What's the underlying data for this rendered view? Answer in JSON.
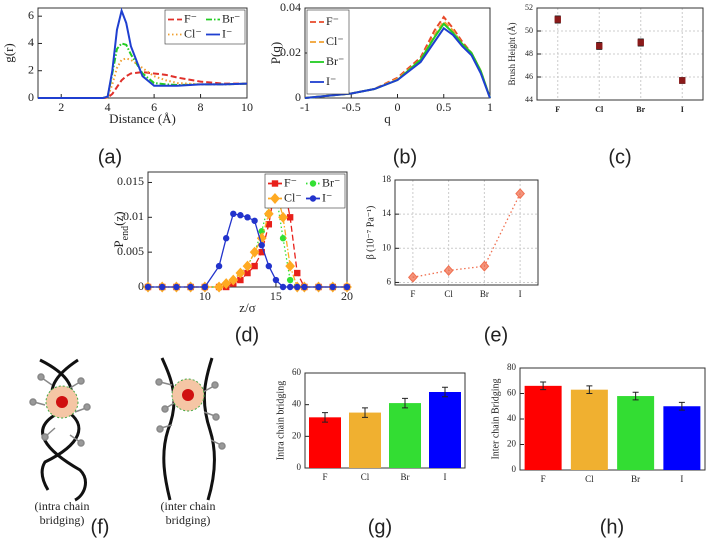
{
  "chart_data": [
    {
      "type": "line",
      "panel_label": "(a)",
      "x_label": "Distance (Å)",
      "y_label": "g(r)",
      "x": [
        1,
        2,
        3,
        3.8,
        4,
        4.2,
        4.4,
        4.6,
        4.8,
        5,
        5.5,
        6,
        6.5,
        7,
        8,
        9,
        10
      ],
      "xlim": [
        1,
        10
      ],
      "xticks": [
        2,
        4,
        6,
        8,
        10
      ],
      "ylim": [
        0,
        6.6
      ],
      "yticks": [
        0,
        2,
        4,
        6
      ],
      "grid": false,
      "legend": "top-right",
      "legend_columns": 2,
      "series": [
        {
          "name": "F⁻",
          "color": "#e0302a",
          "dash": "dashed",
          "values": [
            0,
            0,
            0,
            0,
            0.02,
            0.3,
            0.8,
            1.3,
            1.6,
            1.8,
            1.9,
            1.8,
            1.7,
            1.5,
            1.2,
            1.05,
            1.05
          ]
        },
        {
          "name": "Br⁻",
          "color": "#22cc22",
          "dash": "dashdot",
          "values": [
            0,
            0,
            0,
            0,
            0.1,
            1.8,
            3.6,
            4.0,
            3.9,
            3.2,
            1.8,
            1.1,
            1.0,
            0.95,
            1.0,
            1.0,
            1.05
          ]
        },
        {
          "name": "Cl⁻",
          "color": "#f0a030",
          "dash": "dotted",
          "values": [
            0,
            0,
            0,
            0,
            0.05,
            1.0,
            2.2,
            2.8,
            2.9,
            2.8,
            2.2,
            1.6,
            1.3,
            1.1,
            1.0,
            1.0,
            1.05
          ]
        },
        {
          "name": "I⁻",
          "color": "#1f3fd0",
          "dash": "solid",
          "values": [
            0,
            0,
            0,
            0,
            0.1,
            2.0,
            5.0,
            6.4,
            5.5,
            3.8,
            1.6,
            0.9,
            0.9,
            0.9,
            1.0,
            1.0,
            1.05
          ]
        }
      ]
    },
    {
      "type": "line",
      "panel_label": "(b)",
      "x_label": "q",
      "y_label": "P(q)",
      "x": [
        -1,
        -0.75,
        -0.5,
        -0.25,
        0,
        0.25,
        0.4,
        0.5,
        0.6,
        0.7,
        0.8,
        0.9,
        1
      ],
      "xlim": [
        -1,
        1
      ],
      "xticks": [
        -1,
        -0.5,
        0,
        0.5,
        1
      ],
      "ylim": [
        0,
        0.04
      ],
      "yticks": [
        0,
        0.02,
        0.04
      ],
      "grid": false,
      "legend": "top-left",
      "legend_columns": 1,
      "series": [
        {
          "name": "F⁻",
          "color": "#e84a2a",
          "dash": "dashed",
          "values": [
            0,
            0.001,
            0.002,
            0.004,
            0.009,
            0.018,
            0.03,
            0.036,
            0.031,
            0.025,
            0.02,
            0.012,
            0
          ]
        },
        {
          "name": "Cl⁻",
          "color": "#f0a030",
          "dash": "dashed",
          "values": [
            0,
            0.001,
            0.002,
            0.004,
            0.0085,
            0.017,
            0.028,
            0.034,
            0.03,
            0.024,
            0.02,
            0.012,
            0
          ]
        },
        {
          "name": "Br⁻",
          "color": "#22cc22",
          "dash": "solid",
          "values": [
            0,
            0.001,
            0.002,
            0.004,
            0.008,
            0.017,
            0.027,
            0.033,
            0.029,
            0.024,
            0.02,
            0.012,
            0
          ]
        },
        {
          "name": "I⁻",
          "color": "#1f3fd0",
          "dash": "solid",
          "values": [
            0,
            0.001,
            0.002,
            0.004,
            0.008,
            0.016,
            0.025,
            0.031,
            0.028,
            0.023,
            0.019,
            0.011,
            0
          ]
        }
      ]
    },
    {
      "type": "scatter",
      "panel_label": "(c)",
      "y_label": "Brush Height (Å)",
      "categories": [
        "F",
        "Cl",
        "Br",
        "I"
      ],
      "values": [
        51,
        48.7,
        49,
        45.7
      ],
      "errors": [
        0.3,
        0.3,
        0.3,
        0.25
      ],
      "color": "#8b1a1a",
      "marker": "square",
      "ylim": [
        44,
        52
      ],
      "yticks": [
        44,
        46,
        48,
        50,
        52
      ],
      "grid": true
    },
    {
      "type": "line",
      "panel_label": "(d)",
      "x_label": "z/σ",
      "y_label": [
        "P",
        "end",
        "(z)"
      ],
      "x": [
        6,
        7,
        8,
        9,
        10,
        11,
        11.5,
        12,
        12.5,
        13,
        13.5,
        14,
        14.5,
        15,
        15.5,
        16,
        16.5,
        17,
        18,
        19,
        20
      ],
      "xlim": [
        6,
        20
      ],
      "xticks": [
        10,
        15,
        20
      ],
      "ylim": [
        0,
        0.0165
      ],
      "yticks": [
        0,
        0.005,
        0.01,
        0.015
      ],
      "grid": false,
      "legend": "top-right",
      "legend_columns": 2,
      "series": [
        {
          "name": "F⁻",
          "color": "#e8201a",
          "dash": "dashed",
          "marker": "square",
          "values": [
            0,
            0,
            0,
            0,
            0,
            0,
            0,
            0.0005,
            0.001,
            0.002,
            0.003,
            0.005,
            0.009,
            0.015,
            0.015,
            0.01,
            0.002,
            0,
            0,
            0,
            0
          ]
        },
        {
          "name": "Br⁻",
          "color": "#33e033",
          "dash": "dotted",
          "marker": "circle",
          "values": [
            0,
            0,
            0,
            0,
            0,
            0,
            0.0005,
            0.001,
            0.002,
            0.003,
            0.005,
            0.008,
            0.012,
            0.0135,
            0.007,
            0.001,
            0,
            0,
            0,
            0,
            0
          ]
        },
        {
          "name": "Cl⁻",
          "color": "#ffaa22",
          "dash": "dashdot",
          "marker": "diamond",
          "values": [
            0,
            0,
            0,
            0,
            0,
            0,
            0.0005,
            0.001,
            0.002,
            0.003,
            0.005,
            0.007,
            0.0105,
            0.014,
            0.01,
            0.003,
            0,
            0,
            0,
            0,
            0
          ]
        },
        {
          "name": "I⁻",
          "color": "#2233cc",
          "dash": "solid",
          "marker": "circle",
          "values": [
            0,
            0,
            0,
            0,
            0,
            0.003,
            0.007,
            0.0105,
            0.0103,
            0.01,
            0.0095,
            0.006,
            0.003,
            0.001,
            0,
            0,
            0,
            0,
            0,
            0,
            0
          ]
        }
      ]
    },
    {
      "type": "line",
      "panel_label": "(e)",
      "y_label": "β (10⁻⁷ Pa⁻¹)",
      "categories": [
        "F",
        "Cl",
        "Br",
        "I"
      ],
      "values": [
        6.6,
        7.4,
        7.9,
        16.4
      ],
      "color": "#f07050",
      "dash": "dotted",
      "marker": "diamond",
      "ylim": [
        5.7,
        18
      ],
      "yticks": [
        6,
        10,
        14,
        18
      ],
      "grid": true
    },
    {
      "type": "bar",
      "panel_label": "(g)",
      "y_label": "Intra chain bridging",
      "categories": [
        "F",
        "Cl",
        "Br",
        "I"
      ],
      "values": [
        32,
        35,
        41,
        48
      ],
      "errors": [
        3,
        3,
        3,
        3
      ],
      "colors": [
        "#ff0000",
        "#f0b030",
        "#33dd33",
        "#0000ff"
      ],
      "ylim": [
        0,
        60
      ],
      "yticks": [
        0,
        20,
        40,
        60
      ],
      "grid": false
    },
    {
      "type": "bar",
      "panel_label": "(h)",
      "y_label": "Inter chain Bridging",
      "categories": [
        "F",
        "Cl",
        "Br",
        "I"
      ],
      "values": [
        66,
        63,
        58,
        50
      ],
      "errors": [
        3,
        3,
        3,
        3
      ],
      "colors": [
        "#ff0000",
        "#f0b030",
        "#33dd33",
        "#0000ff"
      ],
      "ylim": [
        0,
        80
      ],
      "yticks": [
        0,
        20,
        40,
        60,
        80
      ],
      "grid": false
    }
  ],
  "diagram": {
    "panel_label": "(f)",
    "captions": [
      [
        "(intra chain",
        "bridging)"
      ],
      [
        "(inter chain",
        "bridging)"
      ]
    ]
  }
}
